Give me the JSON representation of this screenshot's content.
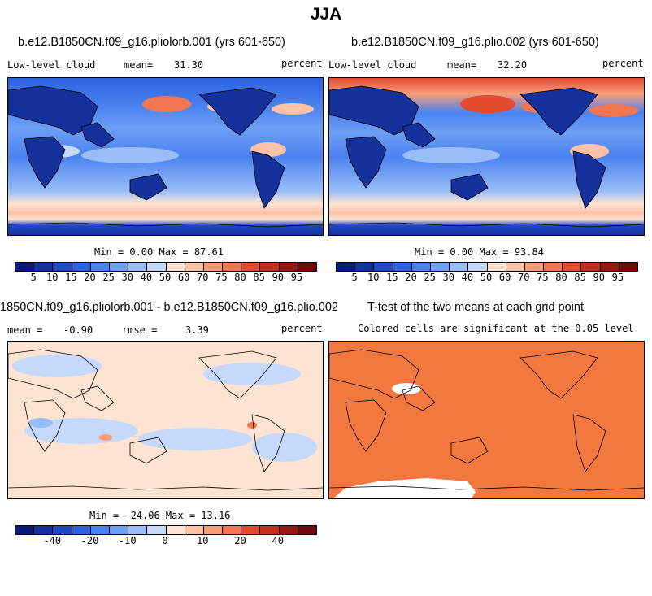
{
  "figure": {
    "title": "JJA"
  },
  "panels": [
    {
      "id": "p1",
      "title": "b.e12.B1850CN.f09_g16.pliolorb.001 (yrs 601-650)",
      "left_label": "Low-level cloud",
      "mean_label": "mean=",
      "mean_value": "31.30",
      "units": "percent",
      "stats": "Min =   0.00 Max = 87.61",
      "colorbar": {
        "colors": [
          "#0a1a7a",
          "#14319c",
          "#1f48c2",
          "#2e63e0",
          "#4a82ef",
          "#6e9ff5",
          "#98bdf8",
          "#c6d9fa",
          "#fde3d2",
          "#fbc2a6",
          "#f89e79",
          "#f27651",
          "#e34a2e",
          "#c42e1c",
          "#951812",
          "#6d0a0a"
        ],
        "ticks": [
          "5",
          "10",
          "15",
          "20",
          "25",
          "30",
          "40",
          "50",
          "60",
          "70",
          "75",
          "80",
          "85",
          "90",
          "95"
        ]
      }
    },
    {
      "id": "p2",
      "title": "b.e12.B1850CN.f09_g16.plio.002 (yrs 601-650)",
      "left_label": "Low-level cloud",
      "mean_label": "mean=",
      "mean_value": "32.20",
      "units": "percent",
      "stats": "Min =   0.00 Max = 93.84",
      "colorbar": {
        "colors": [
          "#0a1a7a",
          "#14319c",
          "#1f48c2",
          "#2e63e0",
          "#4a82ef",
          "#6e9ff5",
          "#98bdf8",
          "#c6d9fa",
          "#fde3d2",
          "#fbc2a6",
          "#f89e79",
          "#f27651",
          "#e34a2e",
          "#c42e1c",
          "#951812",
          "#6d0a0a"
        ],
        "ticks": [
          "5",
          "10",
          "15",
          "20",
          "25",
          "30",
          "40",
          "50",
          "60",
          "70",
          "75",
          "80",
          "85",
          "90",
          "95"
        ]
      }
    },
    {
      "id": "p3",
      "title": "1850CN.f09_g16.pliolorb.001 - b.e12.B1850CN.f09_g16.plio.002",
      "mean_label": "mean =",
      "mean_value": "-0.90",
      "rmse_label": "rmse =",
      "rmse_value": "3.39",
      "units": "percent",
      "stats": "Min = -24.06 Max = 13.16",
      "colorbar": {
        "colors": [
          "#0a1a7a",
          "#14319c",
          "#1f48c2",
          "#2e63e0",
          "#4a82ef",
          "#6e9ff5",
          "#98bdf8",
          "#c6d9fa",
          "#fde3d2",
          "#fbc2a6",
          "#f89e79",
          "#f27651",
          "#e34a2e",
          "#c42e1c",
          "#951812",
          "#6d0a0a"
        ],
        "ticks": [
          "-40",
          "-20",
          "-10",
          "0",
          "10",
          "20",
          "40"
        ]
      }
    },
    {
      "id": "p4",
      "title": "T-test of the two means at each grid point",
      "subtitle": "Colored cells are significant at the 0.05 level",
      "fill_color": "#f2783f"
    }
  ]
}
